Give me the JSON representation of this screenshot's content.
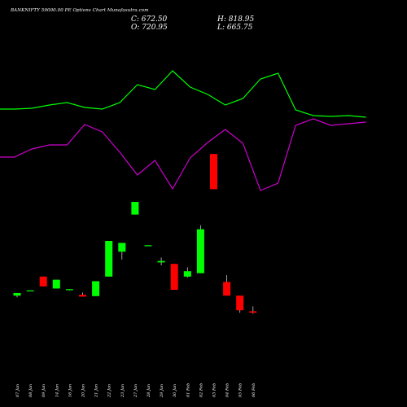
{
  "title": "BANKNIFTY 59000.00 PE Options Chart Munafasutra.com",
  "stats": {
    "close": "C: 672.50",
    "open": "O: 720.95",
    "high": "H: 818.95",
    "low": "L: 665.75"
  },
  "colors": {
    "background": "#000000",
    "up": "#00ff00",
    "down": "#ff0000",
    "upper_line": "#00ff00",
    "lower_line": "#cc00cc"
  },
  "chart_data": {
    "type": "candlestick",
    "categories": [
      "07 Jan",
      "08 Jan",
      "09 Jan",
      "14 Jan",
      "16 Jan",
      "20 Jan",
      "21 Jan",
      "22 Jan",
      "23 Jan",
      "27 Jan",
      "28 Jan",
      "29 Jan",
      "30 Jan",
      "01 Feb",
      "02 Feb",
      "03 Feb",
      "04 Feb",
      "05 Feb",
      "06 Feb"
    ],
    "candles": [
      {
        "open": 4.0,
        "high": 6.7,
        "low": 2.3,
        "close": 6.7
      },
      {
        "open": 9.0,
        "high": 9.4,
        "low": 8.6,
        "close": 9.4
      },
      {
        "open": 23.5,
        "high": 23.5,
        "low": 13.5,
        "close": 13.5
      },
      {
        "open": 11.3,
        "high": 20.3,
        "low": 11.3,
        "close": 20.3
      },
      {
        "open": 10.0,
        "high": 10.6,
        "low": 9.4,
        "close": 10.6
      },
      {
        "open": 4.9,
        "high": 7.2,
        "low": 3.0,
        "close": 3.0
      },
      {
        "open": 3.5,
        "high": 18.8,
        "low": 3.5,
        "close": 18.8
      },
      {
        "open": 23.5,
        "high": 60.0,
        "low": 23.5,
        "close": 60.0
      },
      {
        "open": 49.0,
        "high": 58.0,
        "low": 41.0,
        "close": 58.0
      },
      {
        "open": 87.0,
        "high": 100.0,
        "low": 87.0,
        "close": 100.0
      },
      {
        "open": 55.2,
        "high": 55.6,
        "low": 54.8,
        "close": 55.6
      },
      {
        "open": 38.0,
        "high": 43.0,
        "low": 35.0,
        "close": 39.5
      },
      {
        "open": 36.5,
        "high": 36.5,
        "low": 10.0,
        "close": 10.0
      },
      {
        "open": 23.5,
        "high": 33.0,
        "low": 22.5,
        "close": 29.0
      },
      {
        "open": 27.0,
        "high": 76.0,
        "low": 27.0,
        "close": 72.0
      },
      {
        "open": 149.0,
        "high": 149.0,
        "low": 113.0,
        "close": 113.0
      },
      {
        "open": 18.0,
        "high": 25.0,
        "low": 4.0,
        "close": 4.0
      },
      {
        "open": 4.0,
        "high": 4.0,
        "low": -13.5,
        "close": -11.0
      },
      {
        "open": -12.0,
        "high": -7.0,
        "low": -14.5,
        "close": -13.5
      }
    ],
    "upper_band": [
      134,
      134,
      133,
      129,
      126,
      132,
      134,
      126,
      104,
      110,
      87,
      107,
      116,
      129,
      121,
      97,
      90,
      135,
      142,
      143,
      142,
      144
    ],
    "lower_band": [
      193,
      193,
      183,
      178,
      178,
      153,
      162,
      187,
      215,
      197,
      232,
      194,
      175,
      159,
      176,
      234,
      225,
      154,
      146,
      154,
      152,
      150
    ]
  }
}
